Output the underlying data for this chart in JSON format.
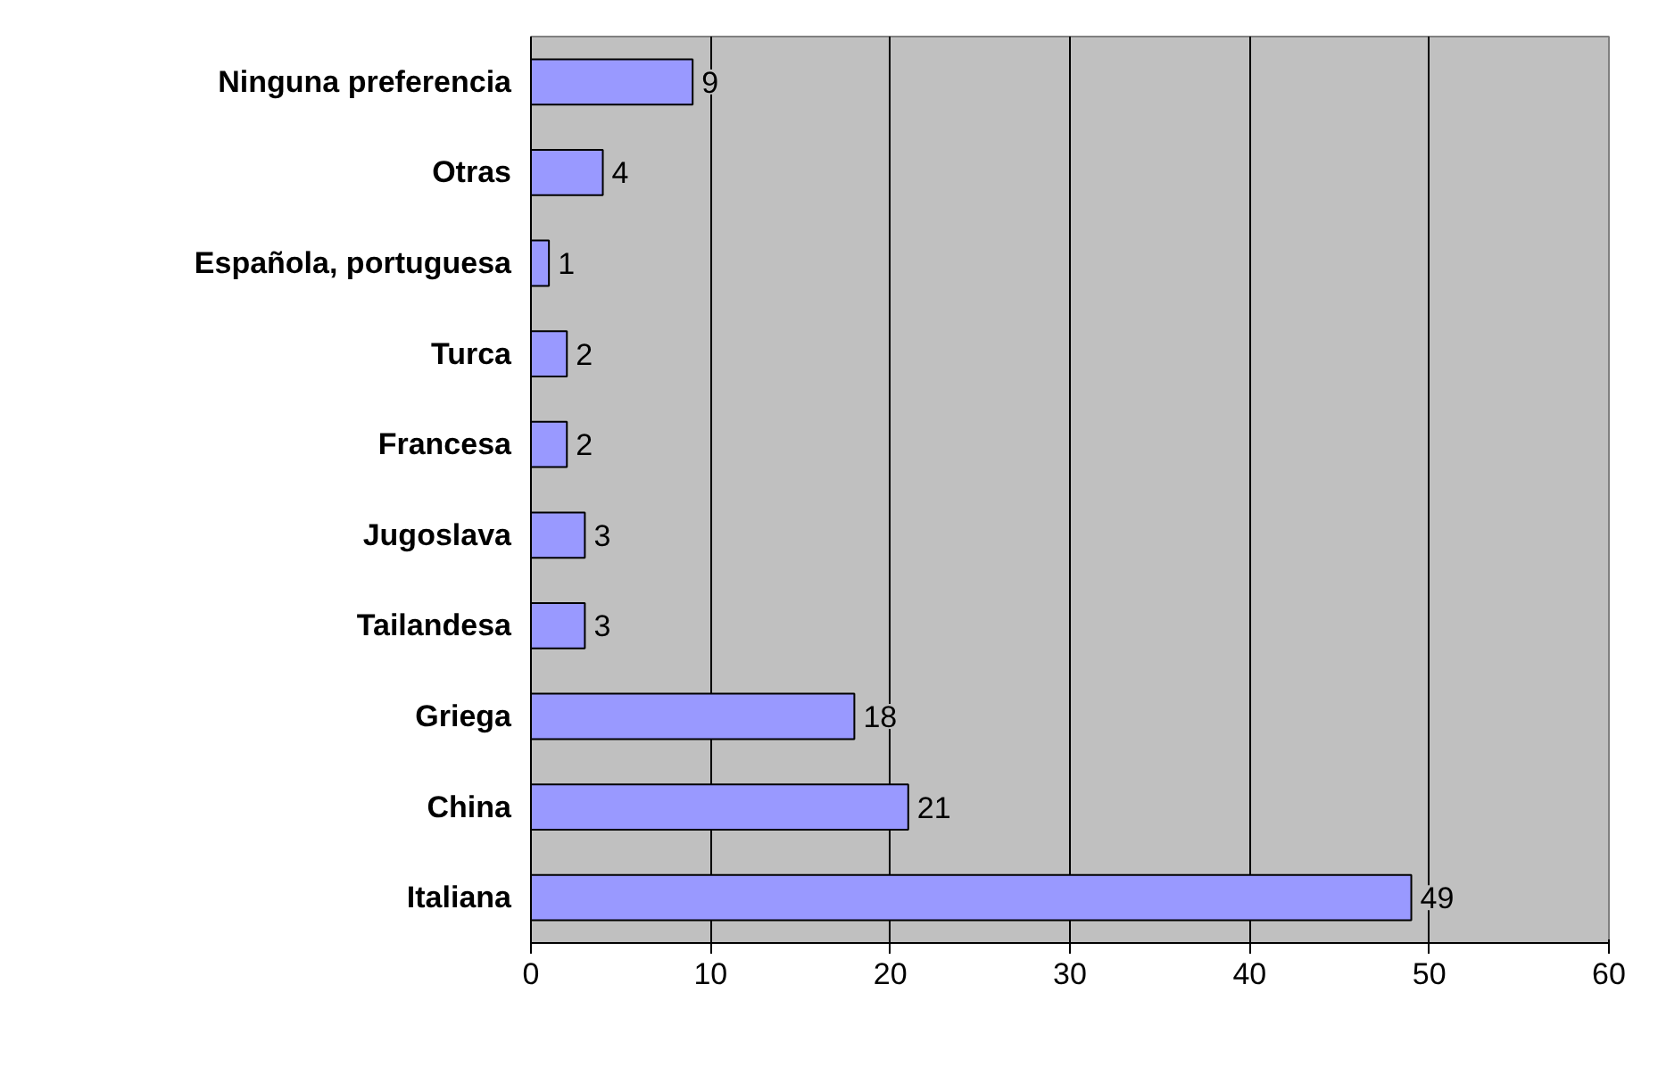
{
  "chart_data": {
    "type": "bar",
    "orientation": "horizontal",
    "categories": [
      "Ninguna preferencia",
      "Otras",
      "Española, portuguesa",
      "Turca",
      "Francesa",
      "Jugoslava",
      "Tailandesa",
      "Griega",
      "China",
      "Italiana"
    ],
    "values": [
      9,
      4,
      1,
      2,
      2,
      3,
      3,
      18,
      21,
      49
    ],
    "color": "#9999ff",
    "xlim": [
      0,
      60
    ],
    "xticks": [
      0,
      10,
      20,
      30,
      40,
      50,
      60
    ],
    "grid": "x",
    "data_labels": true
  }
}
